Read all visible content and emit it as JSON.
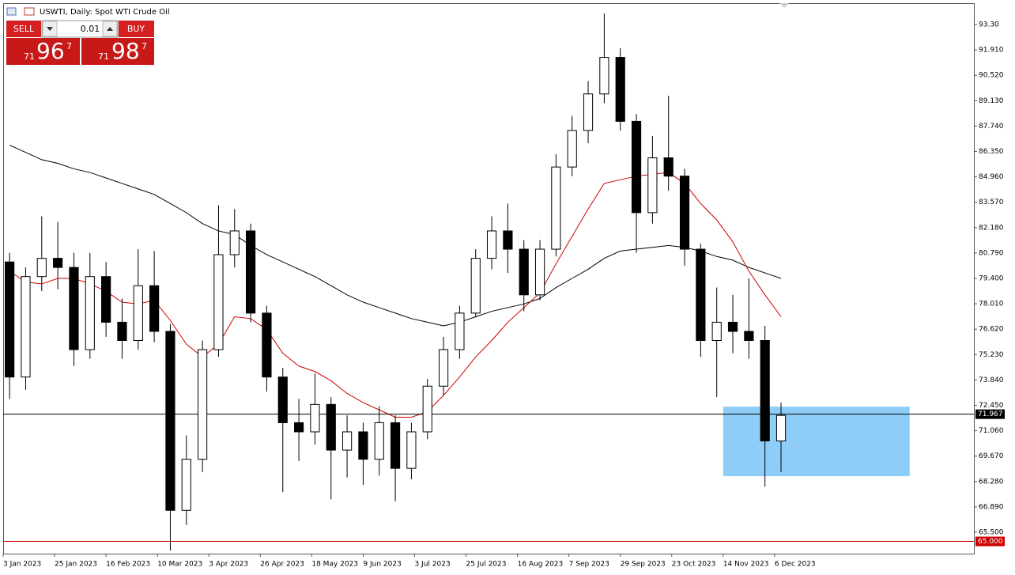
{
  "chart_data": {
    "type": "candlestick",
    "title": "USWTI, Daily:  Spot WTI Crude Oil",
    "trade_panel": {
      "sell": "SELL",
      "buy": "BUY",
      "lot": "0.01",
      "bid_prefix": "71",
      "bid_main": "96",
      "bid_suffix": "7",
      "ask_prefix": "71",
      "ask_main": "98",
      "ask_suffix": "7"
    },
    "xlim": [
      0,
      302
    ],
    "ylim": [
      64.33,
      94.47
    ],
    "xticks": [
      {
        "value": 0,
        "label": "3 Jan 2023"
      },
      {
        "value": 16,
        "label": "25 Jan 2023"
      },
      {
        "value": 32,
        "label": "16 Feb 2023"
      },
      {
        "value": 48,
        "label": "10 Mar 2023"
      },
      {
        "value": 64,
        "label": "3 Apr 2023"
      },
      {
        "value": 80,
        "label": "26 Apr 2023"
      },
      {
        "value": 96,
        "label": "18 May 2023"
      },
      {
        "value": 112,
        "label": "9 Jun 2023"
      },
      {
        "value": 128,
        "label": "3 Jul 2023"
      },
      {
        "value": 144,
        "label": "25 Jul 2023"
      },
      {
        "value": 160,
        "label": "16 Aug 2023"
      },
      {
        "value": 176,
        "label": "7 Sep 2023"
      },
      {
        "value": 192,
        "label": "29 Sep 2023"
      },
      {
        "value": 208,
        "label": "23 Oct 2023"
      },
      {
        "value": 224,
        "label": "14 Nov 2023"
      },
      {
        "value": 240,
        "label": "6 Dec 2023"
      }
    ],
    "yticks": [
      {
        "value": 93.3,
        "label": "93.30"
      },
      {
        "value": 91.91,
        "label": "91.910"
      },
      {
        "value": 90.52,
        "label": "90.520"
      },
      {
        "value": 89.13,
        "label": "89.130"
      },
      {
        "value": 87.74,
        "label": "87.740"
      },
      {
        "value": 86.35,
        "label": "86.350"
      },
      {
        "value": 84.96,
        "label": "84.960"
      },
      {
        "value": 83.57,
        "label": "83.570"
      },
      {
        "value": 82.18,
        "label": "82.180"
      },
      {
        "value": 80.79,
        "label": "80.790"
      },
      {
        "value": 79.4,
        "label": "79.400"
      },
      {
        "value": 78.01,
        "label": "78.010"
      },
      {
        "value": 76.62,
        "label": "76.620"
      },
      {
        "value": 75.23,
        "label": "75.230"
      },
      {
        "value": 73.84,
        "label": "73.840"
      },
      {
        "value": 72.45,
        "label": "72.450"
      },
      {
        "value": 71.06,
        "label": "71.060"
      },
      {
        "value": 69.67,
        "label": "69.670"
      },
      {
        "value": 68.28,
        "label": "68.280"
      },
      {
        "value": 66.89,
        "label": "66.890"
      },
      {
        "value": 65.5,
        "label": "65.500"
      }
    ],
    "x": [
      2,
      7,
      12,
      17,
      22,
      27,
      32,
      37,
      42,
      47,
      52,
      57,
      62,
      67,
      72,
      77,
      82,
      87,
      92,
      97,
      102,
      107,
      112,
      117,
      122,
      127,
      132,
      137,
      142,
      147,
      152,
      157,
      162,
      167,
      172,
      177,
      182,
      187,
      192,
      197,
      202,
      207,
      212,
      217,
      222,
      227,
      232,
      237,
      242
    ],
    "open": [
      80.3,
      74.0,
      79.5,
      80.5,
      80.0,
      75.5,
      79.5,
      77.0,
      76.0,
      79.0,
      76.5,
      66.7,
      69.5,
      75.5,
      80.7,
      82.0,
      77.5,
      74.0,
      71.5,
      71.0,
      72.5,
      70.0,
      71.0,
      69.5,
      71.5,
      69.0,
      71.0,
      73.5,
      75.5,
      77.5,
      80.5,
      82.0,
      81.0,
      78.5,
      81.0,
      85.5,
      87.5,
      89.5,
      91.5,
      88.0,
      83.0,
      86.0,
      85.0,
      81.0,
      76.0,
      77.0,
      76.5,
      76.0,
      70.5
    ],
    "high": [
      80.8,
      80.0,
      82.8,
      82.5,
      80.8,
      80.8,
      80.3,
      78.3,
      81.0,
      80.9,
      76.9,
      70.8,
      76.0,
      83.4,
      83.2,
      82.4,
      77.9,
      74.5,
      72.8,
      74.2,
      72.9,
      71.9,
      71.5,
      72.4,
      71.9,
      71.5,
      73.9,
      76.2,
      77.9,
      81.0,
      82.8,
      83.5,
      81.5,
      81.5,
      86.2,
      88.3,
      90.2,
      93.9,
      92.0,
      88.4,
      87.2,
      89.4,
      85.4,
      81.3,
      78.9,
      78.5,
      79.4,
      76.8,
      72.6
    ],
    "low": [
      72.8,
      73.3,
      78.7,
      78.8,
      74.6,
      75.0,
      76.2,
      75.0,
      75.5,
      75.9,
      64.5,
      65.9,
      68.8,
      75.1,
      80.0,
      77.0,
      73.2,
      67.7,
      69.4,
      70.3,
      67.3,
      68.5,
      68.1,
      68.6,
      67.2,
      68.4,
      70.6,
      73.0,
      75.0,
      77.3,
      79.9,
      79.7,
      77.6,
      78.2,
      80.6,
      85.0,
      86.8,
      89.0,
      87.5,
      80.8,
      82.4,
      84.2,
      80.1,
      75.1,
      72.9,
      75.3,
      75.0,
      68.0,
      68.8
    ],
    "close": [
      74.0,
      79.5,
      80.5,
      80.0,
      75.5,
      79.5,
      77.0,
      76.0,
      79.0,
      76.5,
      66.7,
      69.5,
      75.5,
      80.7,
      82.0,
      77.5,
      74.0,
      71.5,
      71.0,
      72.5,
      70.0,
      71.0,
      69.5,
      71.5,
      69.0,
      71.0,
      73.5,
      75.5,
      77.5,
      80.5,
      82.0,
      81.0,
      78.5,
      81.0,
      85.5,
      87.5,
      89.5,
      91.5,
      88.0,
      83.0,
      86.0,
      85.0,
      81.0,
      76.0,
      77.0,
      76.5,
      76.0,
      70.5,
      71.9
    ],
    "series": [
      {
        "color": "#000000",
        "values": [
          86.7,
          86.3,
          85.9,
          85.7,
          85.4,
          85.2,
          84.9,
          84.6,
          84.3,
          84.0,
          83.5,
          83.0,
          82.4,
          82.0,
          81.8,
          81.2,
          80.7,
          80.3,
          79.9,
          79.5,
          79.0,
          78.5,
          78.1,
          77.8,
          77.5,
          77.2,
          77.0,
          76.8,
          77.0,
          77.3,
          77.6,
          77.8,
          78.0,
          78.3,
          78.9,
          79.4,
          79.9,
          80.5,
          80.9,
          81.0,
          81.1,
          81.2,
          81.1,
          80.9,
          80.6,
          80.4,
          80.0,
          79.7,
          79.4
        ]
      },
      {
        "color": "#cc0000",
        "values": [
          79.8,
          79.2,
          79.1,
          79.4,
          79.4,
          79.1,
          78.7,
          78.1,
          78.0,
          78.2,
          77.1,
          75.8,
          75.1,
          75.8,
          77.3,
          77.2,
          76.6,
          75.3,
          74.6,
          74.3,
          73.8,
          73.1,
          72.6,
          72.2,
          71.8,
          71.8,
          72.1,
          73.0,
          74.0,
          75.1,
          76.0,
          77.0,
          77.8,
          78.6,
          80.2,
          81.7,
          83.2,
          84.6,
          84.8,
          85.0,
          85.1,
          85.2,
          84.6,
          83.5,
          82.6,
          81.4,
          79.8,
          78.5,
          77.3
        ]
      }
    ],
    "hlines": [
      {
        "value": 71.967,
        "color": "#000000",
        "label_bg": "#000000"
      },
      {
        "value": 65,
        "label": "65.000",
        "color": "#cc0000",
        "label_bg": "#cc0000"
      }
    ],
    "zones": [
      {
        "x": [
          224,
          282
        ],
        "y": [
          72.38,
          68.57
        ],
        "color": "#8ecdf8"
      }
    ],
    "bull_color": "#ffffff",
    "bear_color": "#000000"
  }
}
